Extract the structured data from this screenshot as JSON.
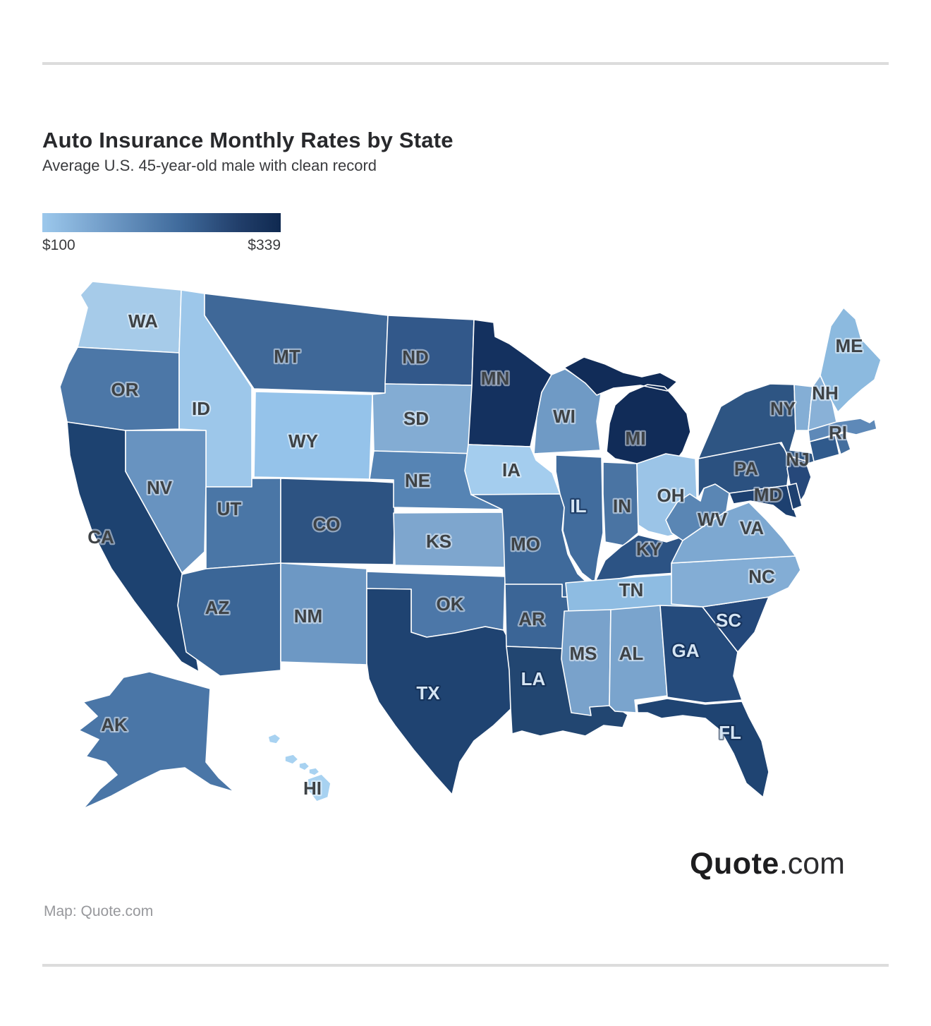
{
  "page": {
    "title": "Auto Insurance Monthly Rates by State",
    "subtitle": "Average U.S. 45-year-old male with clean record",
    "footer_credit": "Map: Quote.com",
    "logo": {
      "bold": "Quote",
      "suffix": ".com"
    }
  },
  "legend": {
    "min_label": "$100",
    "max_label": "$339",
    "gradient_start": "#9cc8ec",
    "gradient_end": "#0f2950"
  },
  "map": {
    "states": [
      {
        "abbr": "WA",
        "label": "WA",
        "fill": "#a6cbe9",
        "label_style": "dark"
      },
      {
        "abbr": "OR",
        "label": "OR",
        "fill": "#4c77a7",
        "label_style": "dark"
      },
      {
        "abbr": "CA",
        "label": "CA",
        "fill": "#1d4270",
        "label_style": "dark"
      },
      {
        "abbr": "ID",
        "label": "ID",
        "fill": "#9dc7ea",
        "label_style": "dark"
      },
      {
        "abbr": "NV",
        "label": "NV",
        "fill": "#6893c0",
        "label_style": "dark"
      },
      {
        "abbr": "UT",
        "label": "UT",
        "fill": "#4a76a6",
        "label_style": "dark"
      },
      {
        "abbr": "AZ",
        "label": "AZ",
        "fill": "#3b6697",
        "label_style": "dark"
      },
      {
        "abbr": "MT",
        "label": "MT",
        "fill": "#3f6898",
        "label_style": "dark"
      },
      {
        "abbr": "WY",
        "label": "WY",
        "fill": "#95c3ea",
        "label_style": "dark"
      },
      {
        "abbr": "CO",
        "label": "CO",
        "fill": "#2d5382",
        "label_style": "dark"
      },
      {
        "abbr": "NM",
        "label": "NM",
        "fill": "#6d98c4",
        "label_style": "dark"
      },
      {
        "abbr": "ND",
        "label": "ND",
        "fill": "#32588a",
        "label_style": "dark"
      },
      {
        "abbr": "SD",
        "label": "SD",
        "fill": "#83acd3",
        "label_style": "dark"
      },
      {
        "abbr": "NE",
        "label": "NE",
        "fill": "#5684b4",
        "label_style": "dark"
      },
      {
        "abbr": "KS",
        "label": "KS",
        "fill": "#7ea6ce",
        "label_style": "dark"
      },
      {
        "abbr": "OK",
        "label": "OK",
        "fill": "#4c77a8",
        "label_style": "dark"
      },
      {
        "abbr": "TX",
        "label": "TX",
        "fill": "#1f4371",
        "label_style": "light"
      },
      {
        "abbr": "MN",
        "label": "MN",
        "fill": "#14315f",
        "label_style": "dark"
      },
      {
        "abbr": "IA",
        "label": "IA",
        "fill": "#a4cdee",
        "label_style": "dark"
      },
      {
        "abbr": "MO",
        "label": "MO",
        "fill": "#3f6a9b",
        "label_style": "dark"
      },
      {
        "abbr": "AR",
        "label": "AR",
        "fill": "#3b6596",
        "label_style": "dark"
      },
      {
        "abbr": "LA",
        "label": "LA",
        "fill": "#224671",
        "label_style": "light"
      },
      {
        "abbr": "WI",
        "label": "WI",
        "fill": "#6f9ac5",
        "label_style": "dark"
      },
      {
        "abbr": "IL",
        "label": "IL",
        "fill": "#416c9d",
        "label_style": "light"
      },
      {
        "abbr": "IN",
        "label": "IN",
        "fill": "#4a74a3",
        "label_style": "dark"
      },
      {
        "abbr": "MI",
        "label": "MI",
        "fill": "#112c58",
        "label_style": "dark"
      },
      {
        "abbr": "OH",
        "label": "OH",
        "fill": "#9bc4e7",
        "label_style": "dark"
      },
      {
        "abbr": "KY",
        "label": "KY",
        "fill": "#2c5384",
        "label_style": "dark"
      },
      {
        "abbr": "TN",
        "label": "TN",
        "fill": "#8ebce2",
        "label_style": "dark"
      },
      {
        "abbr": "MS",
        "label": "MS",
        "fill": "#79a2cb",
        "label_style": "dark"
      },
      {
        "abbr": "AL",
        "label": "AL",
        "fill": "#7aa4cd",
        "label_style": "dark"
      },
      {
        "abbr": "GA",
        "label": "GA",
        "fill": "#254b7c",
        "label_style": "light"
      },
      {
        "abbr": "SC",
        "label": "SC",
        "fill": "#24487a",
        "label_style": "light"
      },
      {
        "abbr": "NC",
        "label": "NC",
        "fill": "#83add5",
        "label_style": "dark"
      },
      {
        "abbr": "VA",
        "label": "VA",
        "fill": "#7da8d1",
        "label_style": "dark"
      },
      {
        "abbr": "WV",
        "label": "WV",
        "fill": "#5a86b4",
        "label_style": "dark"
      },
      {
        "abbr": "FL",
        "label": "FL",
        "fill": "#1f4472",
        "label_style": "light"
      },
      {
        "abbr": "PA",
        "label": "PA",
        "fill": "#2b5180",
        "label_style": "dark"
      },
      {
        "abbr": "NY",
        "label": "NY",
        "fill": "#2e5583",
        "label_style": "dark"
      },
      {
        "abbr": "NJ",
        "label": "NJ",
        "fill": "#26487a",
        "label_style": "dark"
      },
      {
        "abbr": "MD",
        "label": "MD",
        "fill": "#1d4070",
        "label_style": "dark"
      },
      {
        "abbr": "DE",
        "label": "",
        "fill": "#1d4070",
        "label_style": "dark"
      },
      {
        "abbr": "VT",
        "label": "",
        "fill": "#84aed5",
        "label_style": "dark"
      },
      {
        "abbr": "NH",
        "label": "NH",
        "fill": "#89b1d7",
        "label_style": "dark"
      },
      {
        "abbr": "MA",
        "label": "",
        "fill": "#5e89b8",
        "label_style": "dark"
      },
      {
        "abbr": "CT",
        "label": "",
        "fill": "#305a8c",
        "label_style": "dark"
      },
      {
        "abbr": "RI",
        "label": "RI",
        "fill": "#456f9e",
        "label_style": "dark"
      },
      {
        "abbr": "ME",
        "label": "ME",
        "fill": "#8cbadf",
        "label_style": "dark"
      },
      {
        "abbr": "AK",
        "label": "AK",
        "fill": "#4a76a7",
        "label_style": "dark"
      },
      {
        "abbr": "HI",
        "label": "HI",
        "fill": "#a8d2f1",
        "label_style": "dark"
      }
    ]
  }
}
